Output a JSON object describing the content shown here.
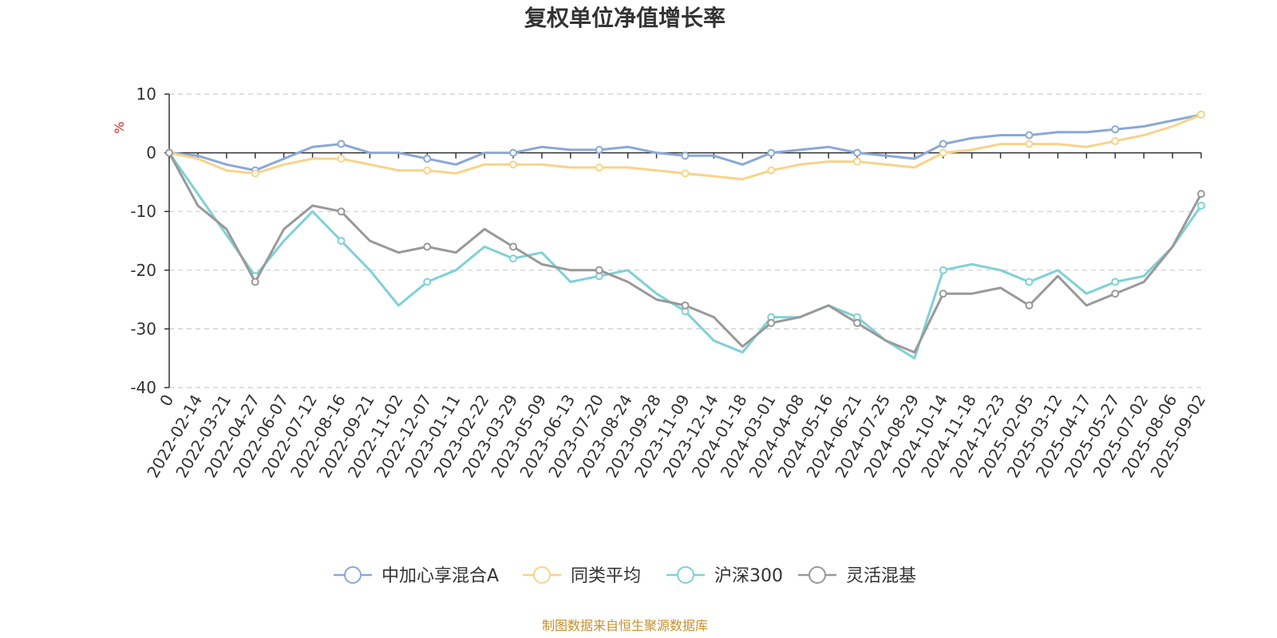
{
  "title": "复权单位净值增长率",
  "footer": "制图数据来自恒生聚源数据库",
  "chart_data": {
    "type": "line",
    "title": "复权单位净值增长率",
    "ylabel": "%",
    "xlabel": "",
    "ylim": [
      -40,
      10
    ],
    "yticks": [
      10,
      0,
      -10,
      -20,
      -30,
      -40
    ],
    "grid": true,
    "legend_position": "bottom-center",
    "x": [
      "0",
      "2022-02-14",
      "2022-03-21",
      "2022-04-27",
      "2022-06-07",
      "2022-07-12",
      "2022-08-16",
      "2022-09-21",
      "2022-11-02",
      "2022-12-07",
      "2023-01-11",
      "2023-02-22",
      "2023-03-29",
      "2023-05-09",
      "2023-06-13",
      "2023-07-20",
      "2023-08-24",
      "2023-09-28",
      "2023-11-09",
      "2023-12-14",
      "2024-01-18",
      "2024-03-01",
      "2024-04-08",
      "2024-05-16",
      "2024-06-21",
      "2024-07-25",
      "2024-08-29",
      "2024-10-14",
      "2024-11-18",
      "2024-12-23",
      "2025-02-05",
      "2025-03-12",
      "2025-04-17",
      "2025-05-27",
      "2025-07-02",
      "2025-08-06",
      "2025-09-02"
    ],
    "series": [
      {
        "name": "中加心享混合A",
        "color": "#8aa8d8",
        "values": [
          0,
          -0.5,
          -2,
          -3,
          -1,
          1,
          1.5,
          0,
          0,
          -1,
          -2,
          0,
          0,
          1,
          0.5,
          0.5,
          1,
          0,
          -0.5,
          -0.5,
          -2,
          0,
          0.5,
          1,
          0,
          -0.5,
          -1,
          1.5,
          2.5,
          3,
          3,
          3.5,
          3.5,
          4,
          4.5,
          5.5,
          6.5
        ]
      },
      {
        "name": "同类平均",
        "color": "#f9d38a",
        "values": [
          0,
          -1,
          -3,
          -3.5,
          -2,
          -1,
          -1,
          -2,
          -3,
          -3,
          -3.5,
          -2,
          -2,
          -2,
          -2.5,
          -2.5,
          -2.5,
          -3,
          -3.5,
          -4,
          -4.5,
          -3,
          -2,
          -1.5,
          -1.5,
          -2,
          -2.5,
          0,
          0.5,
          1.5,
          1.5,
          1.5,
          1,
          2,
          3,
          4.5,
          6.5
        ]
      },
      {
        "name": "沪深300",
        "color": "#7fd1d6",
        "values": [
          0,
          -7,
          -14,
          -21,
          -15,
          -10,
          -15,
          -20,
          -26,
          -22,
          -20,
          -16,
          -18,
          -17,
          -22,
          -21,
          -20,
          -24,
          -27,
          -32,
          -34,
          -28,
          -28,
          -26,
          -28,
          -32,
          -35,
          -20,
          -19,
          -20,
          -22,
          -20,
          -24,
          -22,
          -21,
          -16,
          -9
        ]
      },
      {
        "name": "灵活混基",
        "color": "#999999",
        "values": [
          0,
          -9,
          -13,
          -22,
          -13,
          -9,
          -10,
          -15,
          -17,
          -16,
          -17,
          -13,
          -16,
          -19,
          -20,
          -20,
          -22,
          -25,
          -26,
          -28,
          -33,
          -29,
          -28,
          -26,
          -29,
          -32,
          -34,
          -24,
          -24,
          -23,
          -26,
          -21,
          -26,
          -24,
          -22,
          -16,
          -7
        ]
      }
    ]
  }
}
